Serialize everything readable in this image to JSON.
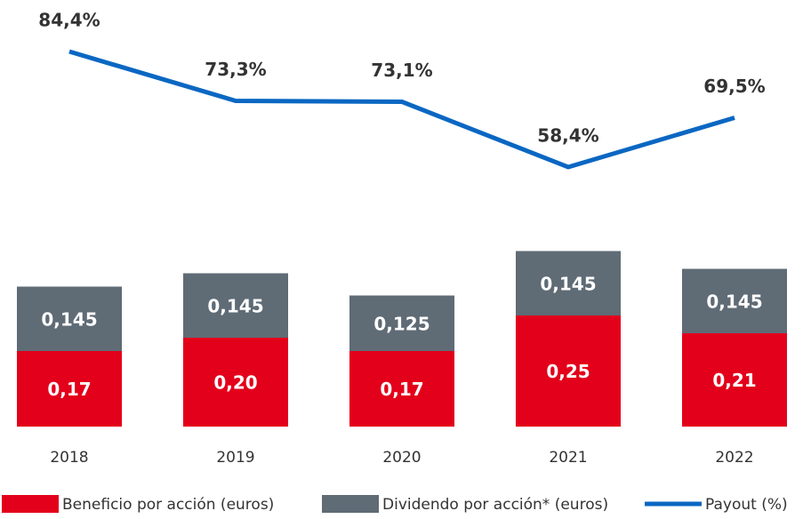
{
  "chart_data": {
    "type": "bar",
    "categories": [
      "2018",
      "2019",
      "2020",
      "2021",
      "2022"
    ],
    "ylim": [
      0,
      0.9
    ],
    "y2lim": [
      0,
      90
    ],
    "series": [
      {
        "name": "Beneficio por acción (euros)",
        "type": "bar",
        "color": "#e3001b",
        "values": [
          0.17,
          0.2,
          0.17,
          0.25,
          0.21
        ],
        "value_labels": [
          "0,17",
          "0,20",
          "0,17",
          "0,25",
          "0,21"
        ]
      },
      {
        "name": "Dividendo por acción* (euros)",
        "type": "bar",
        "color": "#5f6b75",
        "values": [
          0.145,
          0.145,
          0.125,
          0.145,
          0.145
        ],
        "value_labels": [
          "0,145",
          "0,145",
          "0,125",
          "0,145",
          "0,145"
        ]
      },
      {
        "name": "Payout (%)",
        "type": "line",
        "axis": "y2",
        "color": "#0a67c2",
        "values": [
          84.4,
          73.3,
          73.1,
          58.4,
          69.5
        ],
        "value_labels": [
          "84,4%",
          "73,3%",
          "73,1%",
          "58,4%",
          "69,5%"
        ]
      }
    ]
  }
}
